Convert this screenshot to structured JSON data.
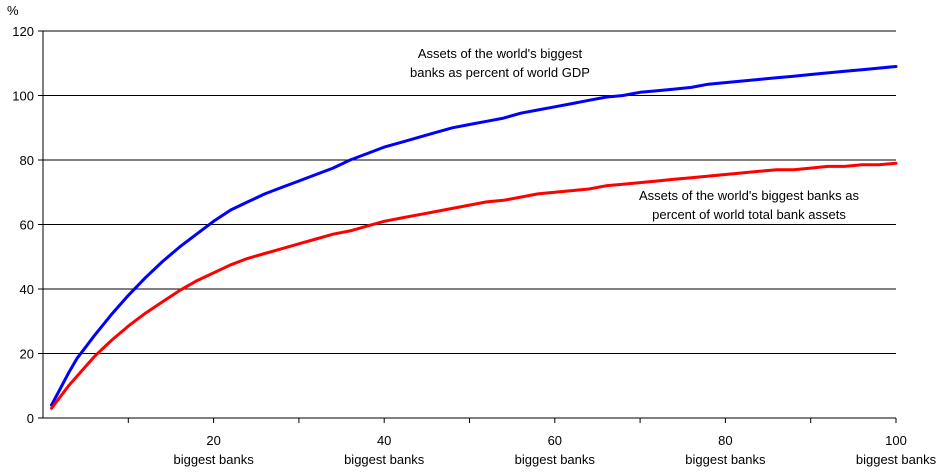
{
  "chart_data": {
    "type": "line",
    "y_unit_label": "%",
    "xlim": [
      0,
      100
    ],
    "ylim": [
      0,
      120
    ],
    "y_ticks": [
      0,
      20,
      40,
      60,
      80,
      100,
      120
    ],
    "x_ticks": [
      {
        "value": 20,
        "number": "20",
        "caption": "biggest banks"
      },
      {
        "value": 40,
        "number": "40",
        "caption": "biggest banks"
      },
      {
        "value": 60,
        "number": "60",
        "caption": "biggest banks"
      },
      {
        "value": 80,
        "number": "80",
        "caption": "biggest banks"
      },
      {
        "value": 100,
        "number": "100",
        "caption": "biggest banks"
      }
    ],
    "grid": "horizontal",
    "legend": "none",
    "series": [
      {
        "name": "Assets of the world's biggest banks as percent of world GDP",
        "label_lines": [
          "Assets of the world's biggest",
          "banks as percent of world GDP"
        ],
        "color": "#0000ff",
        "x": [
          1,
          2,
          3,
          4,
          5,
          6,
          8,
          10,
          12,
          14,
          16,
          18,
          20,
          22,
          24,
          26,
          28,
          30,
          32,
          34,
          36,
          38,
          40,
          42,
          44,
          46,
          48,
          50,
          52,
          54,
          56,
          58,
          60,
          62,
          64,
          66,
          68,
          70,
          72,
          74,
          76,
          78,
          80,
          82,
          84,
          86,
          88,
          90,
          92,
          94,
          96,
          98,
          100
        ],
        "y": [
          4,
          9,
          14,
          18.5,
          22,
          25.5,
          32,
          38,
          43.5,
          48.5,
          53,
          57,
          61,
          64.5,
          67,
          69.5,
          71.5,
          73.5,
          75.5,
          77.5,
          80,
          82,
          84,
          85.5,
          87,
          88.5,
          90,
          91,
          92,
          93,
          94.5,
          95.5,
          96.5,
          97.5,
          98.5,
          99.5,
          100,
          101,
          101.5,
          102,
          102.5,
          103.5,
          104,
          104.5,
          105,
          105.5,
          106,
          106.5,
          107,
          107.5,
          108,
          108.5,
          109
        ]
      },
      {
        "name": "Assets of the world's biggest banks as percent of world total bank assets",
        "label_lines": [
          "Assets of the world's biggest banks as",
          "percent of world total bank assets"
        ],
        "color": "#ff0000",
        "x": [
          1,
          2,
          3,
          4,
          5,
          6,
          8,
          10,
          12,
          14,
          16,
          18,
          20,
          22,
          24,
          26,
          28,
          30,
          32,
          34,
          36,
          38,
          40,
          42,
          44,
          46,
          48,
          50,
          52,
          54,
          56,
          58,
          60,
          62,
          64,
          66,
          68,
          70,
          72,
          74,
          76,
          78,
          80,
          82,
          84,
          86,
          88,
          90,
          92,
          94,
          96,
          98,
          100
        ],
        "y": [
          3,
          6.5,
          10,
          13,
          16,
          19,
          24,
          28.5,
          32.5,
          36,
          39.5,
          42.5,
          45,
          47.5,
          49.5,
          51,
          52.5,
          54,
          55.5,
          57,
          58,
          59.5,
          61,
          62,
          63,
          64,
          65,
          66,
          67,
          67.5,
          68.5,
          69.5,
          70,
          70.5,
          71,
          72,
          72.5,
          73,
          73.5,
          74,
          74.5,
          75,
          75.5,
          76,
          76.5,
          77,
          77,
          77.5,
          78,
          78,
          78.5,
          78.5,
          79
        ]
      }
    ]
  }
}
